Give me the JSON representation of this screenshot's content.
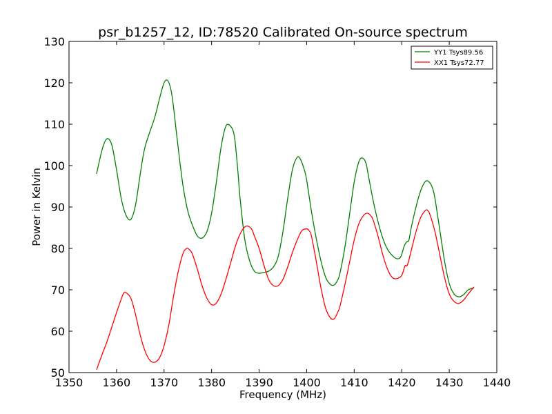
{
  "chart_data": {
    "type": "line",
    "title": "psr_b1257_12, ID:78520 Calibrated On-source spectrum",
    "xlabel": "Frequency (MHz)",
    "ylabel": "Power in Kelvin",
    "xlim": [
      1350,
      1440
    ],
    "ylim": [
      50,
      130
    ],
    "xticks": [
      1350,
      1360,
      1370,
      1380,
      1390,
      1400,
      1410,
      1420,
      1430,
      1440
    ],
    "yticks": [
      50,
      60,
      70,
      80,
      90,
      100,
      110,
      120,
      130
    ],
    "grid": false,
    "legend_position": "top-right",
    "series": [
      {
        "name": "YY1 Tsys89.56",
        "color": "#008000",
        "x": [
          1355.8,
          1357,
          1358,
          1359,
          1360,
          1361,
          1362,
          1363,
          1364,
          1365,
          1366,
          1368,
          1369,
          1370,
          1370.8,
          1371.5,
          1372,
          1373,
          1374,
          1375,
          1376,
          1377,
          1378,
          1379,
          1380,
          1381,
          1382,
          1383,
          1384,
          1384.8,
          1385.5,
          1386,
          1387,
          1388,
          1389,
          1390,
          1391,
          1392,
          1393,
          1394,
          1395,
          1396,
          1397,
          1398,
          1398.7,
          1399.5,
          1400,
          1401,
          1402,
          1403,
          1404,
          1405,
          1405.8,
          1406.5,
          1407,
          1408,
          1409,
          1410,
          1411,
          1411.8,
          1412.5,
          1413,
          1414,
          1415,
          1416,
          1417,
          1418,
          1419,
          1419.8,
          1420.5,
          1421,
          1421.5,
          1422,
          1423,
          1424,
          1425,
          1425.8,
          1426.5,
          1427,
          1428,
          1429,
          1430,
          1431,
          1432,
          1433,
          1434,
          1435.2
        ],
        "y": [
          98,
          104,
          106.5,
          105,
          99,
          92,
          88,
          87,
          90.5,
          98,
          104.5,
          111.5,
          116,
          120,
          120.5,
          118,
          114,
          104,
          95,
          89,
          85.5,
          83,
          82.5,
          84,
          88.5,
          96,
          104.5,
          109.5,
          109.5,
          107,
          99,
          92,
          82,
          77,
          74.5,
          74,
          74.2,
          74.5,
          75.5,
          78,
          84,
          92,
          99,
          102,
          101.5,
          99,
          96.5,
          89,
          82.5,
          77,
          73,
          71.3,
          71.2,
          72.3,
          74,
          80,
          88,
          96,
          101,
          101.8,
          100.5,
          97.5,
          91.5,
          86.5,
          82.5,
          79.8,
          78.3,
          77.5,
          78,
          80.5,
          81.5,
          82,
          85,
          90,
          94,
          96.2,
          96,
          94.5,
          92,
          84.5,
          77,
          71.5,
          69,
          68.3,
          68.8,
          70,
          70.5
        ]
      },
      {
        "name": "XX1 Tsys72.77",
        "color": "#ff0000",
        "x": [
          1355.8,
          1357,
          1358,
          1359,
          1360,
          1361,
          1361.5,
          1362,
          1363,
          1364,
          1365,
          1366,
          1367,
          1368,
          1369,
          1370,
          1371,
          1372,
          1373,
          1374,
          1374.8,
          1375.5,
          1376,
          1377,
          1378,
          1379,
          1380,
          1381,
          1382,
          1383,
          1384,
          1385,
          1386,
          1387,
          1387.8,
          1388.5,
          1389,
          1390,
          1391,
          1392,
          1393,
          1394,
          1395,
          1396,
          1397,
          1398,
          1399,
          1400,
          1400.5,
          1401,
          1402,
          1403,
          1404,
          1405,
          1405.8,
          1406.5,
          1407,
          1408,
          1409,
          1410,
          1411,
          1412,
          1412.8,
          1413.5,
          1414,
          1415,
          1416,
          1417,
          1418,
          1419,
          1420,
          1420.7,
          1421.2,
          1422,
          1423,
          1424,
          1425,
          1425.5,
          1426,
          1427,
          1428,
          1429,
          1430,
          1431,
          1432,
          1433,
          1434,
          1435.2
        ],
        "y": [
          50.7,
          54.5,
          57.5,
          61,
          64.5,
          67.8,
          69.2,
          69.3,
          68,
          64,
          59,
          55.2,
          53,
          52.5,
          53.5,
          56.5,
          61.5,
          68.5,
          74.5,
          78.8,
          80,
          79.5,
          78.5,
          75,
          71,
          68,
          66.4,
          66.8,
          69,
          72.5,
          76.5,
          80.5,
          83.5,
          85.2,
          85.3,
          84.5,
          83,
          80,
          76,
          72.5,
          71,
          71,
          72.5,
          75.5,
          79,
          82,
          84.3,
          84.7,
          84.3,
          83,
          77,
          70.5,
          65.5,
          63.2,
          63,
          64.5,
          66,
          71,
          76.5,
          82,
          86,
          88,
          88.5,
          87.9,
          86.8,
          83,
          78.5,
          75,
          73,
          72.7,
          73.5,
          75.8,
          76,
          79.5,
          84,
          87.5,
          89.2,
          89.1,
          88,
          84,
          78.5,
          73,
          69,
          67.2,
          66.7,
          67.5,
          69,
          70.7
        ]
      }
    ]
  }
}
